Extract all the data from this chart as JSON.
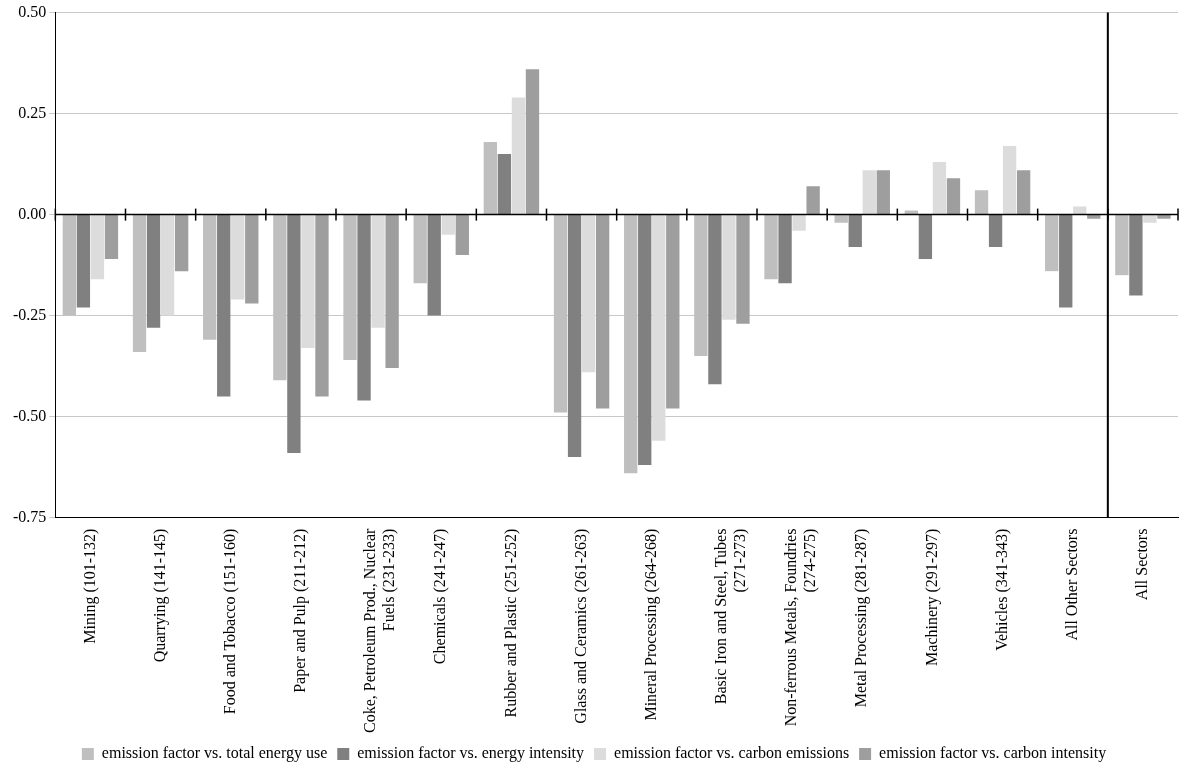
{
  "chart_data": {
    "type": "bar",
    "categories": [
      "Mining (101-132)",
      "Quarrying (141-145)",
      "Food and Tobacco (151-160)",
      "Paper and Pulp (211-212)",
      "Coke, Petroleum Prod., Nuclear Fuels (231-233)",
      "Chemicals (241-247)",
      "Rubber and Plastic (251-252)",
      "Glass and Ceramics (261-263)",
      "Mineral Processing (264-268)",
      "Basic Iron and Steel, Tubes (271-273)",
      "Non-ferrous Metals, Foundries (274-275)",
      "Metal Processing (281-287)",
      "Machinery (291-297)",
      "Vehicles (341-343)",
      "All Other Sectors",
      "All Sectors"
    ],
    "series": [
      {
        "name": "emission factor vs. total energy use",
        "color": "#bfbfbf",
        "values": [
          -0.25,
          -0.34,
          -0.31,
          -0.41,
          -0.36,
          -0.17,
          0.18,
          -0.49,
          -0.64,
          -0.35,
          -0.16,
          -0.02,
          0.01,
          0.06,
          -0.14,
          -0.15
        ]
      },
      {
        "name": "emission factor vs. energy intensity",
        "color": "#808080",
        "values": [
          -0.23,
          -0.28,
          -0.45,
          -0.59,
          -0.46,
          -0.25,
          0.15,
          -0.6,
          -0.62,
          -0.42,
          -0.17,
          -0.08,
          -0.11,
          -0.08,
          -0.23,
          -0.2
        ]
      },
      {
        "name": "emission factor vs. carbon emissions",
        "color": "#dcdcdc",
        "values": [
          -0.16,
          -0.25,
          -0.21,
          -0.33,
          -0.28,
          -0.05,
          0.29,
          -0.39,
          -0.56,
          -0.26,
          -0.04,
          0.11,
          0.13,
          0.17,
          0.02,
          -0.02
        ]
      },
      {
        "name": "emission factor vs. carbon intensity",
        "color": "#9e9e9e",
        "values": [
          -0.11,
          -0.14,
          -0.22,
          -0.45,
          -0.38,
          -0.1,
          0.36,
          -0.48,
          -0.48,
          -0.27,
          0.07,
          0.11,
          0.09,
          0.11,
          -0.01,
          -0.01
        ]
      }
    ],
    "ylim": [
      -0.75,
      0.5
    ],
    "yticks": [
      {
        "value": 0.5,
        "label": "0.50"
      },
      {
        "value": 0.25,
        "label": "0.25"
      },
      {
        "value": 0,
        "label": "0.00"
      },
      {
        "value": -0.25,
        "label": "-0.25"
      },
      {
        "value": -0.5,
        "label": "-0.50"
      },
      {
        "value": -0.75,
        "label": "-0.75"
      }
    ],
    "grid": "y",
    "legend": "bottom",
    "ref_lines": [
      {
        "axis": "x",
        "value": "All Sectors",
        "color": "#000000"
      }
    ]
  }
}
